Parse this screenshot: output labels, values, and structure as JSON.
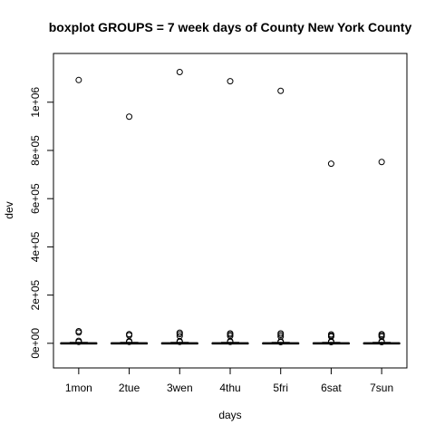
{
  "chart_data": {
    "type": "boxplot",
    "title": "boxplot GROUPS = 7 week days of County New York County",
    "xlabel": "days",
    "ylabel": "dev",
    "ylim": [
      -50000,
      1150000
    ],
    "y_ticks": [
      0,
      200000,
      400000,
      600000,
      800000,
      1000000
    ],
    "y_tick_labels": [
      "0e+00",
      "2e+05",
      "4e+05",
      "6e+05",
      "8e+05",
      "1e+06"
    ],
    "categories": [
      "1mon",
      "2tue",
      "3wen",
      "4thu",
      "5fri",
      "6sat",
      "7sun"
    ],
    "groups": [
      {
        "name": "1mon",
        "median": 0,
        "q1": -2000,
        "q3": 1500,
        "whisker_low": -2000,
        "whisker_high": 4000,
        "outliers": [
          1092000,
          50000,
          45000,
          10000,
          6000
        ]
      },
      {
        "name": "2tue",
        "median": 0,
        "q1": -2000,
        "q3": 1500,
        "whisker_low": -2000,
        "whisker_high": 4000,
        "outliers": [
          940000,
          38000,
          33000,
          9000,
          6000
        ]
      },
      {
        "name": "3wen",
        "median": 0,
        "q1": -2000,
        "q3": 1500,
        "whisker_low": -2000,
        "whisker_high": 4000,
        "outliers": [
          1125000,
          44000,
          38000,
          30000,
          9000,
          6000
        ]
      },
      {
        "name": "4thu",
        "median": 0,
        "q1": -2000,
        "q3": 1500,
        "whisker_low": -2000,
        "whisker_high": 4000,
        "outliers": [
          1087000,
          41000,
          36000,
          30000,
          9000,
          6000
        ]
      },
      {
        "name": "5fri",
        "median": 0,
        "q1": -2000,
        "q3": 1500,
        "whisker_low": -2000,
        "whisker_high": 4000,
        "outliers": [
          1047000,
          41000,
          35000,
          28000,
          8000,
          5000
        ]
      },
      {
        "name": "6sat",
        "median": 0,
        "q1": -2000,
        "q3": 1500,
        "whisker_low": -2000,
        "whisker_high": 4000,
        "outliers": [
          745000,
          37000,
          32000,
          28000,
          8000,
          5000
        ]
      },
      {
        "name": "7sun",
        "median": 0,
        "q1": -2000,
        "q3": 1500,
        "whisker_low": -2000,
        "whisker_high": 4000,
        "outliers": [
          752000,
          38000,
          33000,
          28000,
          8000,
          5000
        ]
      }
    ],
    "grid": false,
    "legend": "none"
  }
}
